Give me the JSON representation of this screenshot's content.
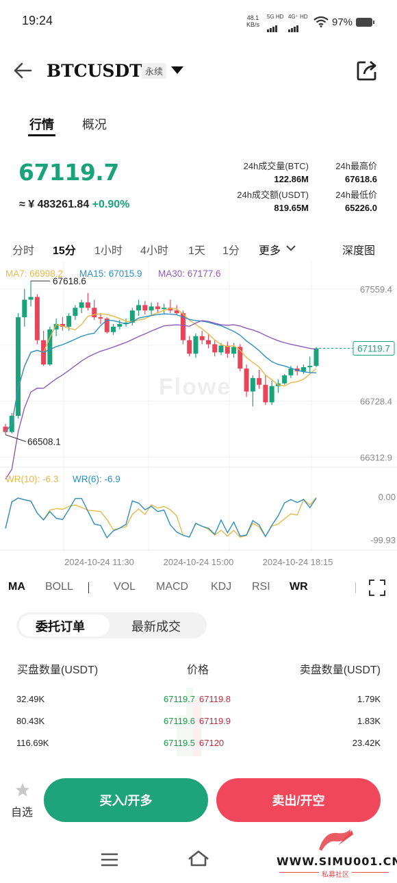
{
  "status_bar": {
    "time": "19:24",
    "speed_value": "48.1",
    "speed_unit": "KB/s",
    "network1": "5G HD",
    "network2": "4G⁺ HD",
    "battery": "97%"
  },
  "header": {
    "symbol": "BTCUSDT",
    "contract_type": "永续"
  },
  "main_tabs": [
    {
      "label": "行情"
    },
    {
      "label": "概况"
    }
  ],
  "ticker": {
    "last_price": "67119.7",
    "cny_prefix": "≈ ¥",
    "cny_value": "483261.84",
    "change_pct": "+0.90%",
    "vol_btc_label": "24h成交量(BTC)",
    "vol_btc_value": "122.86M",
    "high_label": "24h最高价",
    "high_value": "67618.6",
    "vol_usdt_label": "24h成交额(USDT)",
    "vol_usdt_value": "819.65M",
    "low_label": "24h最低价",
    "low_value": "65226.0"
  },
  "timeframes": [
    {
      "label": "分时"
    },
    {
      "label": "15分"
    },
    {
      "label": "1小时"
    },
    {
      "label": "4小时"
    },
    {
      "label": "1天"
    },
    {
      "label": "1分"
    },
    {
      "label": "更多"
    }
  ],
  "depth_label": "深度图",
  "chart_legend": {
    "ma7": "MA7: 66998.2",
    "ma15": "MA15: 67015.9",
    "ma30": "MA30: 67177.6",
    "wr10": "WR(10): -6.3",
    "wr6": "WR(6): -6.9"
  },
  "colors": {
    "up": "#1aa37a",
    "down": "#e8445a",
    "ma7": "#e8b84a",
    "ma15": "#2c8fc0",
    "ma30": "#8c5bb8"
  },
  "chart_data": {
    "type": "candlestick",
    "y_ticks": [
      "67559.4",
      "67143.9",
      "66728.4",
      "66312.9"
    ],
    "ylim": [
      66312.9,
      67559.4
    ],
    "current_price_label": "67119.7",
    "max_label": "67618.6",
    "min_label": "66508.1",
    "wr_ticks": [
      "0.00",
      "-99.93"
    ],
    "x_labels": [
      "2024-10-24 11:30",
      "2024-10-24 15:00",
      "2024-10-24 18:15"
    ],
    "candles": [
      [
        66540,
        66560,
        66480,
        66500
      ],
      [
        66500,
        66640,
        66490,
        66620
      ],
      [
        66620,
        67380,
        66600,
        67350
      ],
      [
        67350,
        67560,
        67280,
        67480
      ],
      [
        67480,
        67620,
        67430,
        67500
      ],
      [
        67500,
        67520,
        67150,
        67180
      ],
      [
        67180,
        67250,
        66990,
        67000
      ],
      [
        67000,
        67280,
        66990,
        67260
      ],
      [
        67260,
        67340,
        67210,
        67300
      ],
      [
        67300,
        67350,
        67250,
        67280
      ],
      [
        67280,
        67380,
        67250,
        67360
      ],
      [
        67360,
        67440,
        67330,
        67420
      ],
      [
        67420,
        67480,
        67380,
        67460
      ],
      [
        67460,
        67530,
        67400,
        67420
      ],
      [
        67420,
        67480,
        67330,
        67350
      ],
      [
        67350,
        67380,
        67300,
        67340
      ],
      [
        67340,
        67350,
        67230,
        67240
      ],
      [
        67240,
        67300,
        67220,
        67280
      ],
      [
        67280,
        67330,
        67260,
        67300
      ],
      [
        67300,
        67340,
        67280,
        67310
      ],
      [
        67310,
        67420,
        67290,
        67400
      ],
      [
        67400,
        67480,
        67360,
        67440
      ],
      [
        67440,
        67470,
        67370,
        67400
      ],
      [
        67400,
        67460,
        67360,
        67430
      ],
      [
        67430,
        67460,
        67380,
        67410
      ],
      [
        67410,
        67450,
        67380,
        67420
      ],
      [
        67420,
        67480,
        67380,
        67400
      ],
      [
        67400,
        67440,
        67370,
        67380
      ],
      [
        67380,
        67400,
        67150,
        67180
      ],
      [
        67180,
        67210,
        67060,
        67080
      ],
      [
        67080,
        67230,
        67050,
        67210
      ],
      [
        67210,
        67250,
        67150,
        67180
      ],
      [
        67180,
        67230,
        67120,
        67150
      ],
      [
        67150,
        67180,
        67060,
        67090
      ],
      [
        67090,
        67160,
        67070,
        67140
      ],
      [
        67140,
        67170,
        67050,
        67080
      ],
      [
        67080,
        67160,
        67050,
        67130
      ],
      [
        67130,
        67150,
        66950,
        66970
      ],
      [
        66970,
        67000,
        66760,
        66800
      ],
      [
        66800,
        66920,
        66690,
        66900
      ],
      [
        66900,
        66960,
        66820,
        66850
      ],
      [
        66850,
        66920,
        66700,
        66720
      ],
      [
        66720,
        66880,
        66700,
        66840
      ],
      [
        66840,
        66890,
        66790,
        66860
      ],
      [
        66860,
        66930,
        66850,
        66920
      ],
      [
        66920,
        66990,
        66900,
        66970
      ],
      [
        66970,
        66990,
        66920,
        66950
      ],
      [
        66950,
        67000,
        66930,
        66980
      ],
      [
        66980,
        67060,
        66940,
        66990
      ],
      [
        66990,
        67130,
        66980,
        67120
      ]
    ]
  },
  "indicator_tabs": [
    {
      "label": "MA"
    },
    {
      "label": "BOLL"
    },
    {
      "label": "VOL"
    },
    {
      "label": "MACD"
    },
    {
      "label": "KDJ"
    },
    {
      "label": "RSI"
    },
    {
      "label": "WR"
    }
  ],
  "orderbook": {
    "tab_orders": "委托订单",
    "tab_trades": "最新成交",
    "col_bid_qty": "买盘数量(USDT)",
    "col_price": "价格",
    "col_ask_qty": "卖盘数量(USDT)",
    "rows": [
      {
        "bid_qty": "32.49K",
        "bid_price": "67119.7",
        "ask_price": "67119.8",
        "ask_qty": "1.79K"
      },
      {
        "bid_qty": "80.43K",
        "bid_price": "67119.6",
        "ask_price": "67119.9",
        "ask_qty": "1.83K"
      },
      {
        "bid_qty": "116.69K",
        "bid_price": "67119.5",
        "ask_price": "67120",
        "ask_qty": "23.42K"
      }
    ]
  },
  "bottom": {
    "watchlist_label": "自选",
    "buy_label": "买入/开多",
    "sell_label": "卖出/开空"
  },
  "watermark": {
    "site": "WWW.SIMU001.CN",
    "subtitle": "私募社区",
    "chart_mark": "Flowe"
  }
}
